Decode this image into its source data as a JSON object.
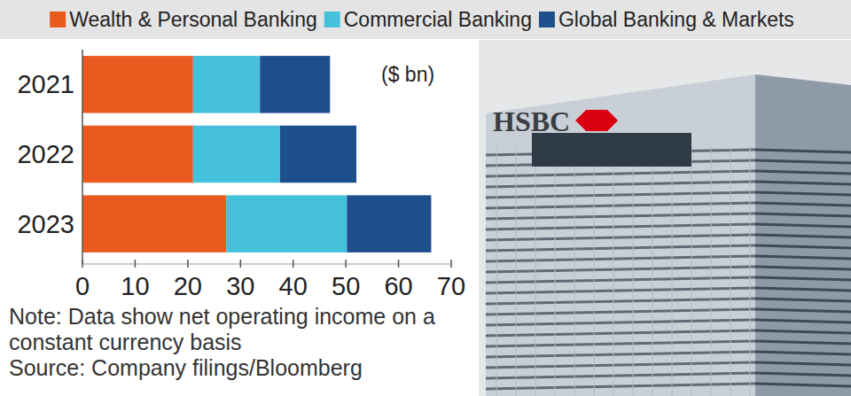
{
  "chart_data": {
    "type": "bar",
    "orientation": "horizontal",
    "stacked": true,
    "categories": [
      "2021",
      "2022",
      "2023"
    ],
    "series": [
      {
        "name": "Wealth & Personal Banking",
        "color": "#ea5a1f",
        "values": [
          21.0,
          21.0,
          27.3
        ]
      },
      {
        "name": "Commercial Banking",
        "color": "#45c1dc",
        "values": [
          12.7,
          16.5,
          22.9
        ]
      },
      {
        "name": "Global Banking & Markets",
        "color": "#1e4f8d",
        "values": [
          13.3,
          14.5,
          16.0
        ]
      }
    ],
    "xlim": [
      0,
      70
    ],
    "xticks": [
      0,
      10,
      20,
      30,
      40,
      50,
      60,
      70
    ],
    "grid": false,
    "legend": "top",
    "annotations": [
      "($ bn)",
      "Note: Data show net operating income on a constant currency basis",
      "Source: Company filings/Bloomberg",
      "HSBC"
    ]
  }
}
